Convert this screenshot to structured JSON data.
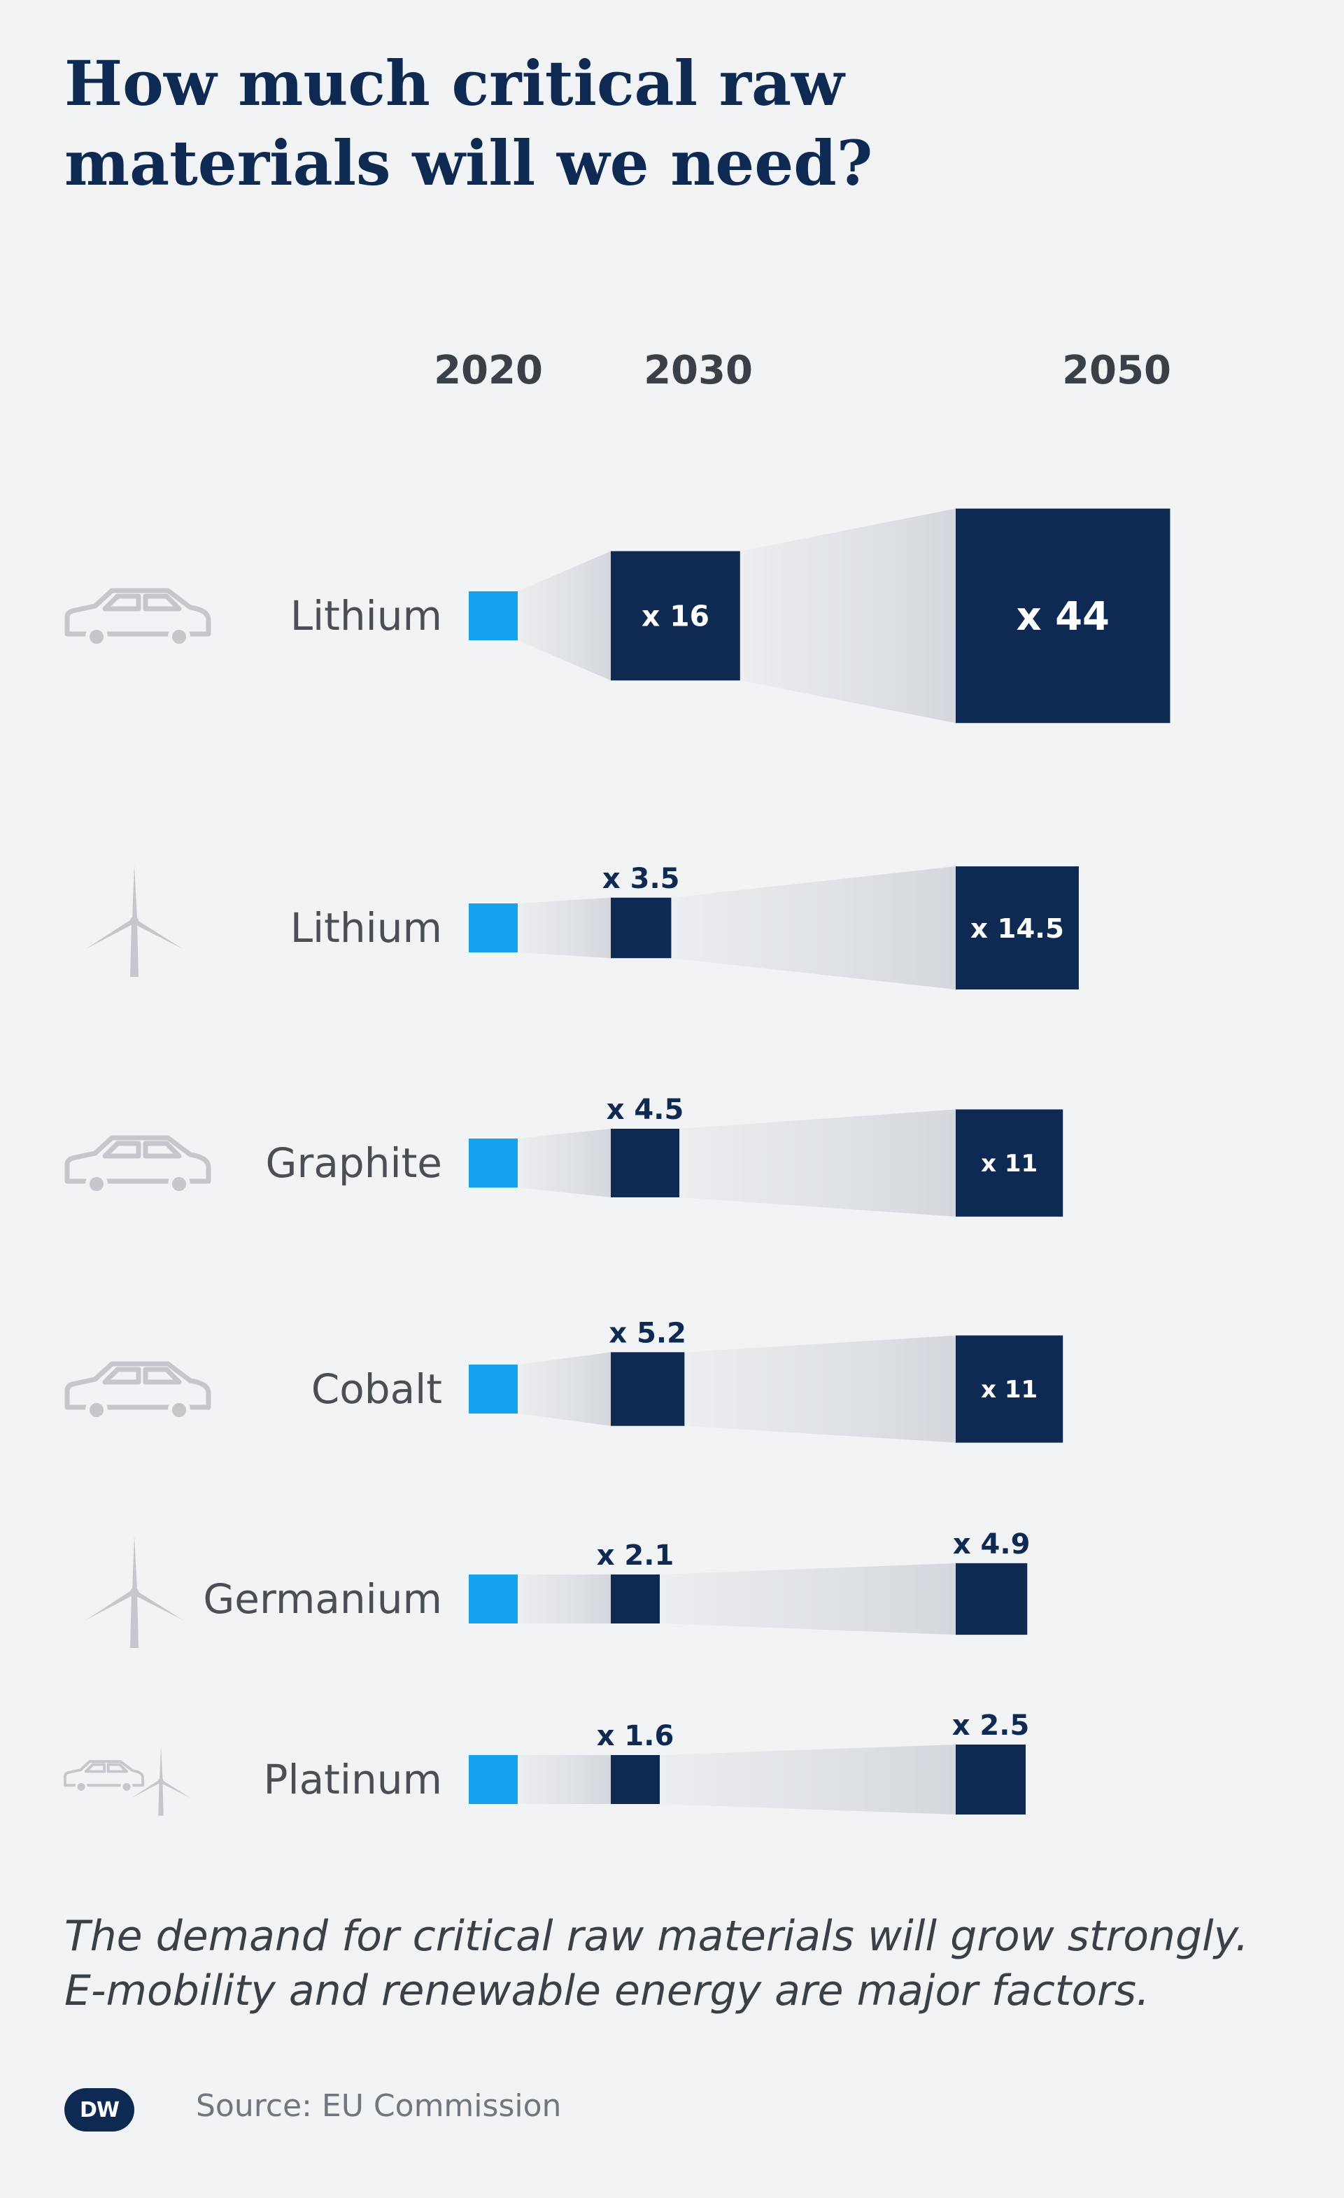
{
  "title_lines": [
    "How much critical raw",
    "materials will we need?"
  ],
  "footnote_lines": [
    "The demand for critical raw materials will grow strongly.",
    "E-mobility and renewable energy are major factors."
  ],
  "source": "Source: EU Commission",
  "logo_text": "DW",
  "colors": {
    "background": "#f1f3f5",
    "baseline_box": "#13a3ef",
    "growth_box": "#0f2a52",
    "funnel": "#d4d8dd",
    "icon": "#c4c8cd"
  },
  "chart_data": {
    "type": "bar",
    "categories": [
      "2020",
      "2030",
      "2050"
    ],
    "rows": [
      {
        "material": "Lithium",
        "sector_icon": "car-icon",
        "labels": [
          "x 16",
          "x 44"
        ],
        "multipliers": [
          1,
          16,
          44
        ]
      },
      {
        "material": "Lithium",
        "sector_icon": "wind-turbine-icon",
        "labels": [
          "x 3.5",
          "x 14.5"
        ],
        "multipliers": [
          1,
          3.5,
          14.5
        ]
      },
      {
        "material": "Graphite",
        "sector_icon": "car-icon",
        "labels": [
          "x 4.5",
          "x 11"
        ],
        "multipliers": [
          1,
          4.5,
          11
        ]
      },
      {
        "material": "Cobalt",
        "sector_icon": "car-icon",
        "labels": [
          "x 5.2",
          "x 11"
        ],
        "multipliers": [
          1,
          5.2,
          11
        ]
      },
      {
        "material": "Germanium",
        "sector_icon": "wind-turbine-icon",
        "labels": [
          "x 2.1",
          "x 4.9"
        ],
        "multipliers": [
          1,
          2.1,
          4.9
        ]
      },
      {
        "material": "Platinum",
        "sector_icon": "car-and-wind-turbine-icon",
        "labels": [
          "x 1.6",
          "x 2.5"
        ],
        "multipliers": [
          1,
          1.6,
          2.5
        ]
      }
    ]
  }
}
